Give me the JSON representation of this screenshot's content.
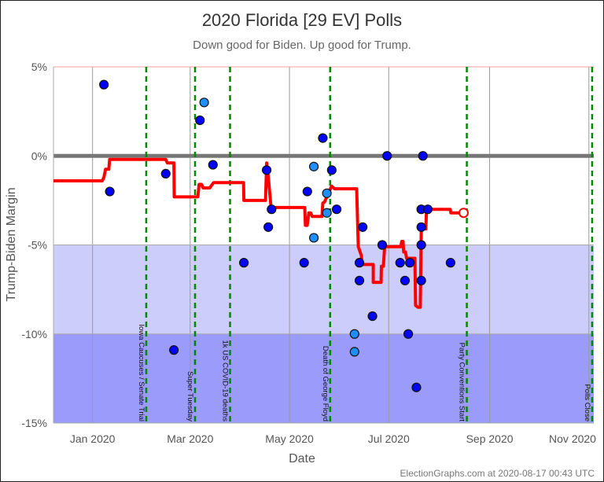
{
  "chart_data": {
    "type": "scatter",
    "title": "2020 Florida [29 EV] Polls",
    "subtitle": "Down good for Biden. Up good for Trump.",
    "xlabel": "Date",
    "ylabel": "Trump-Biden Margin",
    "x_units": "days since 2020-01-01",
    "xlim": [
      -24,
      308
    ],
    "ylim": [
      -15,
      5
    ],
    "x_ticks": [
      {
        "day": 0,
        "label": "Jan 2020"
      },
      {
        "day": 60,
        "label": "Mar 2020"
      },
      {
        "day": 121,
        "label": "May 2020"
      },
      {
        "day": 182,
        "label": "Jul 2020"
      },
      {
        "day": 244,
        "label": "Sep 2020"
      },
      {
        "day": 305,
        "label": "Nov 2020"
      }
    ],
    "y_ticks": [
      {
        "value": 5,
        "label": "5%"
      },
      {
        "value": 0,
        "label": "0%"
      },
      {
        "value": -5,
        "label": "-5%"
      },
      {
        "value": -10,
        "label": "-10%"
      },
      {
        "value": -15,
        "label": "-15%"
      }
    ],
    "bands": [
      {
        "from": -10,
        "to": -5,
        "color": "#cdcdfb"
      },
      {
        "from": -15,
        "to": -10,
        "color": "#9b9bfb"
      }
    ],
    "events": [
      {
        "day": 33,
        "label": "Iowa Caucuses / Senate Trial"
      },
      {
        "day": 63,
        "label": "Super Tuesday"
      },
      {
        "day": 84.5,
        "label": "1k US COVID-19 deaths"
      },
      {
        "day": 146,
        "label": "Death of George Floyd"
      },
      {
        "day": 230,
        "label": "Party Conventions Start"
      },
      {
        "day": 307,
        "label": "Polls Close"
      }
    ],
    "polls": [
      {
        "day": 7,
        "margin": 4,
        "type": "dark"
      },
      {
        "day": 10.6,
        "margin": -2,
        "type": "dark"
      },
      {
        "day": 45,
        "margin": -1,
        "type": "dark"
      },
      {
        "day": 50,
        "margin": -10.9,
        "type": "dark"
      },
      {
        "day": 66,
        "margin": 2,
        "type": "dark"
      },
      {
        "day": 68.6,
        "margin": 3,
        "type": "light"
      },
      {
        "day": 74,
        "margin": -0.5,
        "type": "dark"
      },
      {
        "day": 93,
        "margin": -6,
        "type": "dark"
      },
      {
        "day": 107,
        "margin": -0.8,
        "type": "dark"
      },
      {
        "day": 110,
        "margin": -3,
        "type": "dark"
      },
      {
        "day": 108,
        "margin": -4,
        "type": "dark"
      },
      {
        "day": 130,
        "margin": -6,
        "type": "dark"
      },
      {
        "day": 132,
        "margin": -2,
        "type": "dark"
      },
      {
        "day": 136,
        "margin": -0.6,
        "type": "light"
      },
      {
        "day": 136,
        "margin": -4.6,
        "type": "light"
      },
      {
        "day": 141.5,
        "margin": 1,
        "type": "dark"
      },
      {
        "day": 144,
        "margin": -2.1,
        "type": "light"
      },
      {
        "day": 144,
        "margin": -3.2,
        "type": "light"
      },
      {
        "day": 147,
        "margin": -0.8,
        "type": "dark"
      },
      {
        "day": 150,
        "margin": -3,
        "type": "dark"
      },
      {
        "day": 161,
        "margin": -10,
        "type": "light"
      },
      {
        "day": 161,
        "margin": -11,
        "type": "light"
      },
      {
        "day": 164,
        "margin": -6,
        "type": "dark"
      },
      {
        "day": 164,
        "margin": -7,
        "type": "dark"
      },
      {
        "day": 166,
        "margin": -4,
        "type": "dark"
      },
      {
        "day": 172,
        "margin": -9,
        "type": "dark"
      },
      {
        "day": 178,
        "margin": -5,
        "type": "dark"
      },
      {
        "day": 181,
        "margin": 0,
        "type": "dark"
      },
      {
        "day": 189,
        "margin": -6,
        "type": "dark"
      },
      {
        "day": 192,
        "margin": -7,
        "type": "dark"
      },
      {
        "day": 195,
        "margin": -6,
        "type": "dark"
      },
      {
        "day": 194,
        "margin": -10,
        "type": "dark"
      },
      {
        "day": 199,
        "margin": -13,
        "type": "dark"
      },
      {
        "day": 202,
        "margin": -7,
        "type": "dark"
      },
      {
        "day": 202,
        "margin": -5,
        "type": "dark"
      },
      {
        "day": 202,
        "margin": -4,
        "type": "dark"
      },
      {
        "day": 202,
        "margin": -3,
        "type": "dark"
      },
      {
        "day": 203,
        "margin": 0,
        "type": "dark"
      },
      {
        "day": 206,
        "margin": -3,
        "type": "dark"
      },
      {
        "day": 220,
        "margin": -6,
        "type": "dark"
      }
    ],
    "average": [
      [
        -24,
        -1.4
      ],
      [
        6,
        -1.4
      ],
      [
        7,
        -1.2
      ],
      [
        8,
        -0.75
      ],
      [
        10,
        -0.75
      ],
      [
        10.5,
        -0.2
      ],
      [
        45,
        -0.2
      ],
      [
        46,
        -0.4
      ],
      [
        50,
        -0.4
      ],
      [
        50.2,
        -2.3
      ],
      [
        64.7,
        -2.3
      ],
      [
        65.5,
        -1.6
      ],
      [
        67,
        -1.6
      ],
      [
        68,
        -1.8
      ],
      [
        72,
        -1.8
      ],
      [
        74.4,
        -1.5
      ],
      [
        92.8,
        -1.5
      ],
      [
        93,
        -2.5
      ],
      [
        106.3,
        -2.5
      ],
      [
        107,
        -0.4
      ],
      [
        108,
        -1.2
      ],
      [
        109.7,
        -2.9
      ],
      [
        130.4,
        -2.9
      ],
      [
        130.8,
        -3.9
      ],
      [
        131.9,
        -3.9
      ],
      [
        132.9,
        -3.2
      ],
      [
        134,
        -3.2
      ],
      [
        135,
        -3.4
      ],
      [
        141,
        -3.4
      ],
      [
        141.5,
        -2.65
      ],
      [
        142.5,
        -2.6
      ],
      [
        146.9,
        -1.7
      ],
      [
        148.8,
        -1.85
      ],
      [
        162.3,
        -1.85
      ],
      [
        163.3,
        -5.1
      ],
      [
        165.2,
        -5.6
      ],
      [
        165.5,
        -6.1
      ],
      [
        172.5,
        -6.1
      ],
      [
        172.5,
        -7.1
      ],
      [
        177.3,
        -7.1
      ],
      [
        177.5,
        -6.2
      ],
      [
        178.7,
        -6.2
      ],
      [
        179.5,
        -5.1
      ],
      [
        189.4,
        -5.1
      ],
      [
        190,
        -4.8
      ],
      [
        190.8,
        -4.8
      ],
      [
        191.2,
        -5.4
      ],
      [
        192.3,
        -5.4
      ],
      [
        193,
        -5.75
      ],
      [
        198.1,
        -5.75
      ],
      [
        198.5,
        -8.4
      ],
      [
        200,
        -8.5
      ],
      [
        201.4,
        -8.5
      ],
      [
        202,
        -4.1
      ],
      [
        204.8,
        -4.1
      ],
      [
        205.2,
        -3.1
      ],
      [
        206,
        -3.0
      ],
      [
        219.8,
        -3.0
      ],
      [
        220.2,
        -3.2
      ],
      [
        228,
        -3.2
      ]
    ],
    "colors": {
      "dark": "#0000ff",
      "light": "#1e8fff",
      "average": "#ff0000",
      "event": "#008800"
    },
    "footer": "ElectionGraphs.com at 2020-08-17 00:43 UTC"
  }
}
